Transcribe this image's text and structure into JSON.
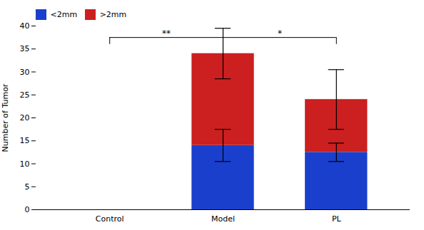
{
  "chart_data": {
    "type": "bar",
    "stacked": true,
    "categories": [
      "Control",
      "Model",
      "PL"
    ],
    "series": [
      {
        "name": "<2mm",
        "color": "#1a3fcc",
        "values": [
          0,
          14,
          12.5
        ],
        "errors": [
          0,
          3.5,
          2.0
        ]
      },
      {
        "name": ">2mm",
        "color": "#cc1f1f",
        "values": [
          0,
          20,
          11.5
        ],
        "errors": [
          0,
          5.5,
          6.5
        ]
      }
    ],
    "ylabel": "Number of Tumor",
    "ylim": [
      0,
      40
    ],
    "yticks": [
      0,
      5,
      10,
      15,
      20,
      25,
      30,
      35,
      40
    ],
    "legend": "upper left",
    "grid": false,
    "annotations": [
      {
        "text": "**",
        "x1": "Control",
        "x2": "Model",
        "y": 37.5
      },
      {
        "text": "*",
        "x1": "Model",
        "x2": "PL",
        "y": 37.5
      }
    ]
  }
}
